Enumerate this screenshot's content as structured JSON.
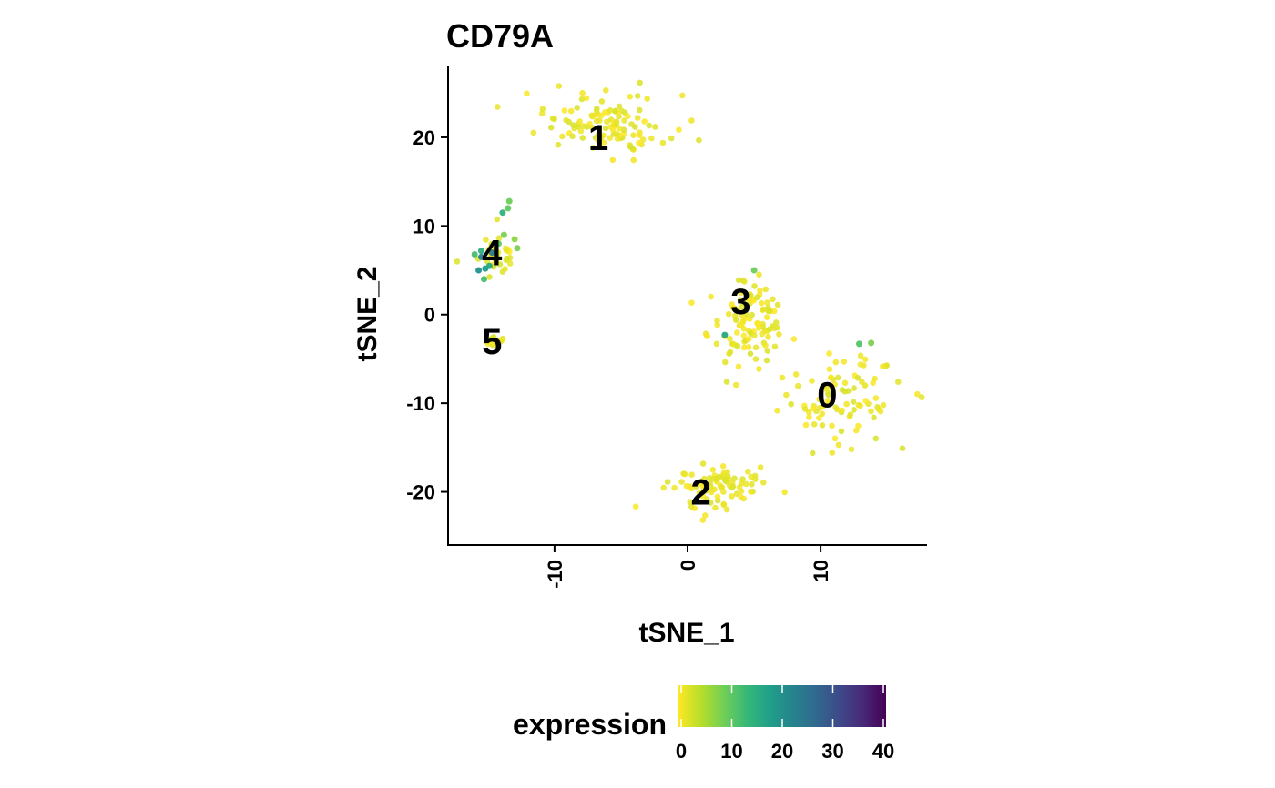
{
  "chart_data": {
    "type": "scatter",
    "title": "CD79A",
    "xlabel": "tSNE_1",
    "ylabel": "tSNE_2",
    "xlim": [
      -18,
      18
    ],
    "ylim": [
      -26,
      28
    ],
    "x_ticks": [
      -10,
      0,
      10
    ],
    "y_ticks": [
      -20,
      -10,
      0,
      10,
      20
    ],
    "grid": false,
    "colorbar": {
      "title": "expression",
      "min": 0,
      "max": 40,
      "ticks": [
        0,
        10,
        20,
        30,
        40
      ],
      "colors": [
        "#fde725",
        "#b5de2b",
        "#6ece58",
        "#35b779",
        "#1f9e89",
        "#26828e",
        "#31688e",
        "#3e4989",
        "#482878",
        "#440154"
      ],
      "placement": "bottom"
    },
    "cluster_labels": [
      {
        "text": "0",
        "x": 10.5,
        "y": -9
      },
      {
        "text": "1",
        "x": -6.7,
        "y": 20
      },
      {
        "text": "2",
        "x": 1,
        "y": -20
      },
      {
        "text": "3",
        "x": 4,
        "y": 1.5
      },
      {
        "text": "4",
        "x": -14.7,
        "y": 7
      },
      {
        "text": "5",
        "x": -14.7,
        "y": -3
      }
    ],
    "clusters": [
      {
        "cluster": "0",
        "center": [
          11.5,
          -9.5
        ],
        "spread": [
          3.3,
          3.6
        ],
        "n": 90
      },
      {
        "cluster": "1",
        "center": [
          -6,
          21.5
        ],
        "spread": [
          3.4,
          2.4
        ],
        "n": 115
      },
      {
        "cluster": "2",
        "center": [
          1.8,
          -19.5
        ],
        "spread": [
          2.4,
          2.0
        ],
        "n": 90
      },
      {
        "cluster": "3",
        "center": [
          4.5,
          -1
        ],
        "spread": [
          2.1,
          3.3
        ],
        "n": 110
      },
      {
        "cluster": "4",
        "center": [
          -14.5,
          7
        ],
        "spread": [
          1.0,
          1.7
        ],
        "n": 40
      },
      {
        "cluster": "5",
        "center": [
          -14.7,
          -3
        ],
        "spread": [
          0.45,
          0.35
        ],
        "n": 25
      }
    ],
    "high_expression_points": [
      {
        "x": -15.5,
        "y": 6.5,
        "expression": 22
      },
      {
        "x": -15.7,
        "y": 5.0,
        "expression": 20
      },
      {
        "x": -15.2,
        "y": 5.2,
        "expression": 18
      },
      {
        "x": -14.9,
        "y": 5.5,
        "expression": 16
      },
      {
        "x": -14.7,
        "y": 7.0,
        "expression": 24
      },
      {
        "x": -15.5,
        "y": 7.2,
        "expression": 15
      },
      {
        "x": -16.0,
        "y": 6.8,
        "expression": 12
      },
      {
        "x": -13.9,
        "y": 11.5,
        "expression": 14
      },
      {
        "x": -13.5,
        "y": 12.0,
        "expression": 10
      },
      {
        "x": -13.4,
        "y": 12.8,
        "expression": 9
      },
      {
        "x": -13.8,
        "y": 9.0,
        "expression": 8
      },
      {
        "x": -14.2,
        "y": 8.0,
        "expression": 10
      },
      {
        "x": -13.0,
        "y": 8.5,
        "expression": 7
      },
      {
        "x": -12.8,
        "y": 7.5,
        "expression": 8
      },
      {
        "x": -15.3,
        "y": 4.0,
        "expression": 12
      },
      {
        "x": 2.8,
        "y": -2.3,
        "expression": 16
      },
      {
        "x": 5.0,
        "y": 5.0,
        "expression": 9
      },
      {
        "x": 12.9,
        "y": -3.3,
        "expression": 11
      },
      {
        "x": 13.8,
        "y": -3.2,
        "expression": 8
      }
    ]
  }
}
